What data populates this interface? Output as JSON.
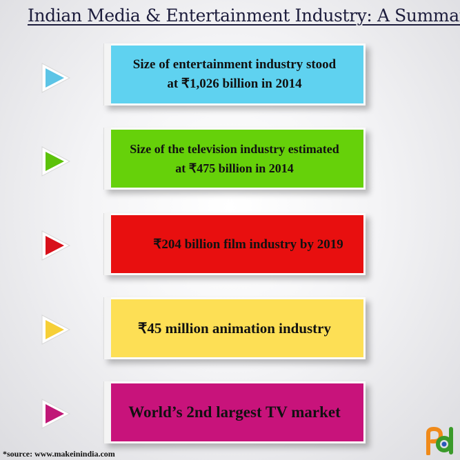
{
  "title": "Indian Media & Entertainment Industry:  A Summary",
  "items": [
    {
      "line1": "Size of  entertainment industry stood",
      "line2": "at ₹1,026 billion in 2014",
      "color": "#5fd2f0",
      "arrow_color": "#5cc4e6"
    },
    {
      "line1": "Size of  the television industry estimated",
      "line2": "at ₹475 billion in 2014",
      "color": "#66d10a",
      "arrow_color": "#5cc20a"
    },
    {
      "line1": "₹204 billion film industry by 2019",
      "line2": "",
      "color": "#e80f0f",
      "arrow_color": "#d8101a"
    },
    {
      "line1": "₹45 million animation industry",
      "line2": "",
      "color": "#fddf55",
      "arrow_color": "#f6cf36"
    },
    {
      "line1": "World’s 2nd largest TV market",
      "line2": "",
      "color": "#c8137b",
      "arrow_color": "#c01877"
    }
  ],
  "source": "*source: www.makeinindia.com",
  "logo_icon": "pd-logo"
}
